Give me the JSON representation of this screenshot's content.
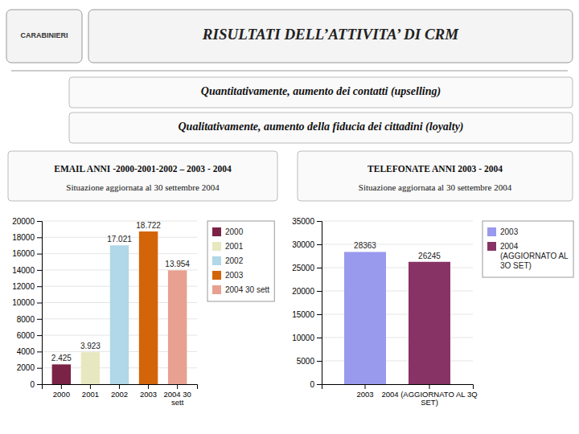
{
  "title": "RISULTATI DELL’ATTIVITA’ DI CRM",
  "annotations": [
    "CARABINIERI",
    "Quantitativamente,  aumento dei contatti  (upselling)",
    "Qualitativamente,  aumento della fiducia dei cittadini  (loyalty)"
  ],
  "chart_data": [
    {
      "type": "bar",
      "title": "EMAIL ANNI -2000-2001-2002 – 2003 - 2004",
      "subtitle": "Situazione aggiornata al 30 settembre 2004",
      "categories": [
        "2000",
        "2001",
        "2002",
        "2003",
        "2004 30\nsett"
      ],
      "values": [
        2425,
        3923,
        17021,
        18722,
        13954
      ],
      "value_labels": [
        "2.425",
        "3.923",
        "17.021",
        "18.722",
        "13.954"
      ],
      "colors": [
        "#7B2346",
        "#E8E8C0",
        "#B0D8E8",
        "#D4640A",
        "#E8A090"
      ],
      "ylim": [
        0,
        20000
      ],
      "yticks": [
        0,
        2000,
        4000,
        6000,
        8000,
        10000,
        12000,
        14000,
        16000,
        18000,
        20000
      ],
      "grid": true,
      "data_labels": true,
      "legend": "right",
      "legend_labels": [
        "2000",
        "2001",
        "2002",
        "2003",
        "2004 30 sett"
      ]
    },
    {
      "type": "bar",
      "title": "TELEFONATE ANNI 2003 - 2004",
      "subtitle": "Situazione aggiornata al 30 settembre 2004",
      "categories": [
        "2003",
        "2004 (AGGIORNATO AL 3Q\nSET)"
      ],
      "values": [
        28363,
        26245
      ],
      "colors": [
        "#9999EE",
        "#883366"
      ],
      "ylim": [
        0,
        35000
      ],
      "yticks": [
        0,
        5000,
        10000,
        15000,
        20000,
        25000,
        30000,
        35000
      ],
      "grid": true,
      "data_labels": true,
      "legend": "right",
      "legend_labels": [
        "2003",
        "2004\n(AGGIORNATO AL\n3O SET)"
      ]
    }
  ]
}
